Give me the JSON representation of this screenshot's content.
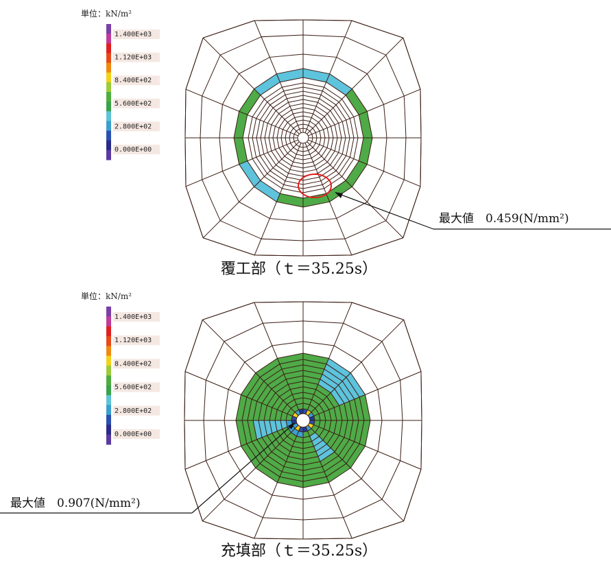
{
  "panels": [
    {
      "legend": {
        "unit": "単位：kN/m²",
        "labels": [
          "1.400E+03",
          "1.120E+03",
          "8.400E+02",
          "5.600E+02",
          "2.800E+02",
          "0.000E+00"
        ]
      },
      "annotation": "最大値　0.459(N/mm²)",
      "caption": "覆工部（ｔ＝35.25s）"
    },
    {
      "legend": {
        "unit": "単位：kN/m²",
        "labels": [
          "1.400E+03",
          "1.120E+03",
          "8.400E+02",
          "5.600E+02",
          "2.800E+02",
          "0.000E+00"
        ]
      },
      "annotation": "最大値　0.907(N/mm²)",
      "caption": "充填部（ｔ＝35.25s）"
    }
  ]
}
